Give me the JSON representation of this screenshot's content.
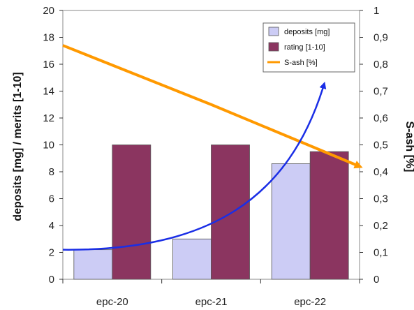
{
  "chart_data": {
    "type": "bar",
    "categories": [
      "epc-20",
      "epc-21",
      "epc-22"
    ],
    "series": [
      {
        "name": "deposits [mg]",
        "axis": "left",
        "kind": "bar",
        "color": "#ccccf5",
        "values": [
          2.2,
          3.0,
          8.6
        ]
      },
      {
        "name": "rating [1-10]",
        "axis": "left",
        "kind": "bar",
        "color": "#8b3560",
        "values": [
          10,
          10,
          9.5
        ]
      },
      {
        "name": "S-ash [%]",
        "axis": "right",
        "kind": "line",
        "color": "#ff9900",
        "values": [
          0.87,
          0.65,
          0.42
        ]
      }
    ],
    "ylabel": "deposits [mg] / merits [1-10]",
    "y2label": "S-ash [%]",
    "ylim": [
      0,
      20
    ],
    "y2lim": [
      0,
      1
    ],
    "yticks": [
      "0",
      "2",
      "4",
      "6",
      "8",
      "10",
      "12",
      "14",
      "16",
      "18",
      "20"
    ],
    "y2ticks": [
      "0",
      "0,1",
      "0,2",
      "0,3",
      "0,4",
      "0,5",
      "0,6",
      "0,7",
      "0,8",
      "0,9",
      "1"
    ],
    "legend": "top-right",
    "grid": false,
    "annotation_arrow_color": "#1a2ee6"
  }
}
